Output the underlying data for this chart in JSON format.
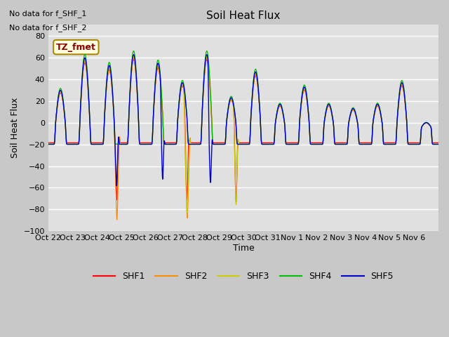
{
  "title": "Soil Heat Flux",
  "ylabel": "Soil Heat Flux",
  "xlabel": "Time",
  "ylim": [
    -100,
    90
  ],
  "yticks": [
    -100,
    -80,
    -60,
    -40,
    -20,
    0,
    20,
    40,
    60,
    80
  ],
  "note1": "No data for f_SHF_1",
  "note2": "No data for f_SHF_2",
  "tz_label": "TZ_fmet",
  "colors": {
    "SHF1": "#ff0000",
    "SHF2": "#ff8c00",
    "SHF3": "#cccc00",
    "SHF4": "#00bb00",
    "SHF5": "#0000cc"
  },
  "bg_color": "#e0e0e0",
  "fig_color": "#c8c8c8",
  "x_tick_labels": [
    "Oct 22",
    "Oct 23",
    "Oct 24",
    "Oct 25",
    "Oct 26",
    "Oct 27",
    "Oct 28",
    "Oct 29",
    "Oct 30",
    "Oct 31",
    "Nov 1",
    "Nov 2",
    "Nov 3",
    "Nov 4",
    "Nov 5",
    "Nov 6"
  ],
  "n_days": 16
}
